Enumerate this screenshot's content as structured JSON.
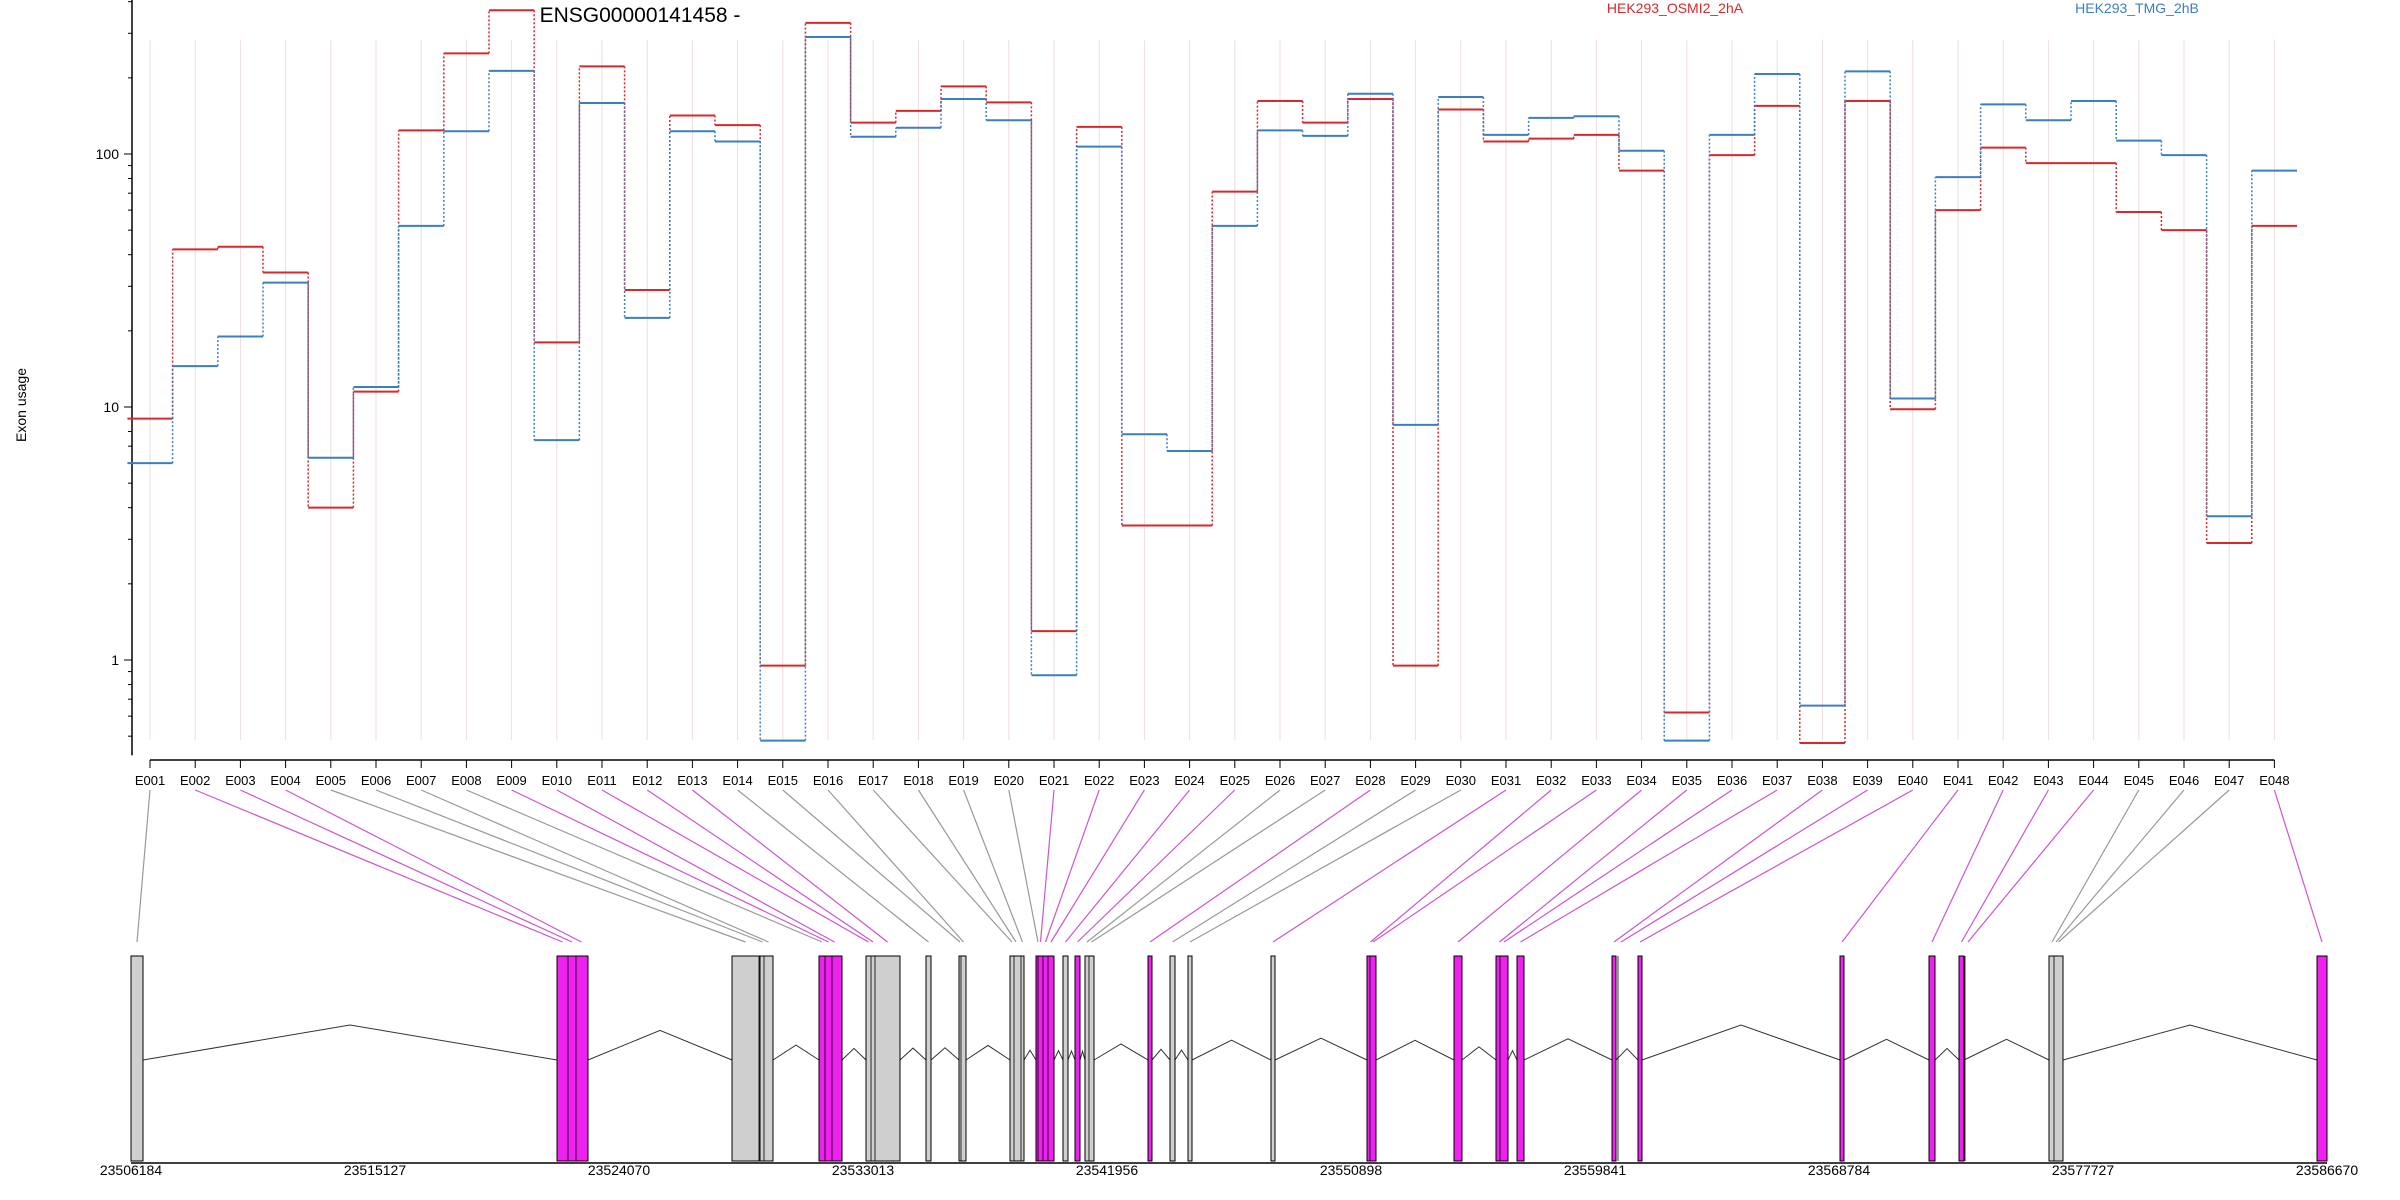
{
  "title": "ENSG00000141458 -",
  "legend": [
    {
      "name": "HEK293_OSMI2_2hA",
      "color": "#d7292b"
    },
    {
      "name": "HEK293_TMG_2hB",
      "color": "#3c7fc0"
    }
  ],
  "chart_data": {
    "type": "line",
    "title": "ENSG00000141458 -",
    "ylabel": "Exon usage",
    "yscale": "log",
    "ylim": [
      0.42,
      470
    ],
    "yticks": [
      1,
      10,
      100
    ],
    "categories": [
      "E001",
      "E002",
      "E003",
      "E004",
      "E005",
      "E006",
      "E007",
      "E008",
      "E009",
      "E010",
      "E011",
      "E012",
      "E013",
      "E014",
      "E015",
      "E016",
      "E017",
      "E018",
      "E019",
      "E020",
      "E021",
      "E022",
      "E023",
      "E024",
      "E025",
      "E026",
      "E027",
      "E028",
      "E029",
      "E030",
      "E031",
      "E032",
      "E033",
      "E034",
      "E035",
      "E036",
      "E037",
      "E038",
      "E039",
      "E040",
      "E041",
      "E042",
      "E043",
      "E044",
      "E045",
      "E046",
      "E047",
      "E048"
    ],
    "series": [
      {
        "name": "HEK293_OSMI2_2hA",
        "color": "#d7292b",
        "values": [
          9.0,
          42,
          43,
          34,
          4.0,
          11.5,
          124,
          250,
          370,
          18,
          222,
          29,
          142,
          130,
          0.95,
          330,
          133,
          148,
          185,
          160,
          1.3,
          128,
          3.4,
          3.4,
          71,
          162,
          133,
          165,
          0.95,
          150,
          112,
          115,
          119,
          86,
          0.62,
          99,
          155,
          0.47,
          162,
          9.8,
          60,
          106,
          92,
          92,
          59,
          50,
          2.9,
          52
        ]
      },
      {
        "name": "HEK293_TMG_2hB",
        "color": "#3c7fc0",
        "values": [
          6.0,
          14.5,
          19,
          31,
          6.3,
          12,
          52,
          123,
          213,
          7.4,
          159,
          22.5,
          123,
          112,
          0.48,
          290,
          117,
          127,
          165,
          136,
          0.87,
          107,
          7.8,
          6.7,
          52,
          124,
          118,
          173,
          8.5,
          168,
          119,
          139,
          141,
          103,
          0.48,
          119,
          207,
          0.66,
          212,
          10.8,
          81,
          157,
          136,
          162,
          113,
          99,
          3.7,
          86
        ]
      }
    ],
    "gene_axis": {
      "labels": [
        "23506184",
        "23515127",
        "23524070",
        "23533013",
        "23541956",
        "23550898",
        "23559841",
        "23568784",
        "23577727",
        "23586670"
      ]
    }
  }
}
